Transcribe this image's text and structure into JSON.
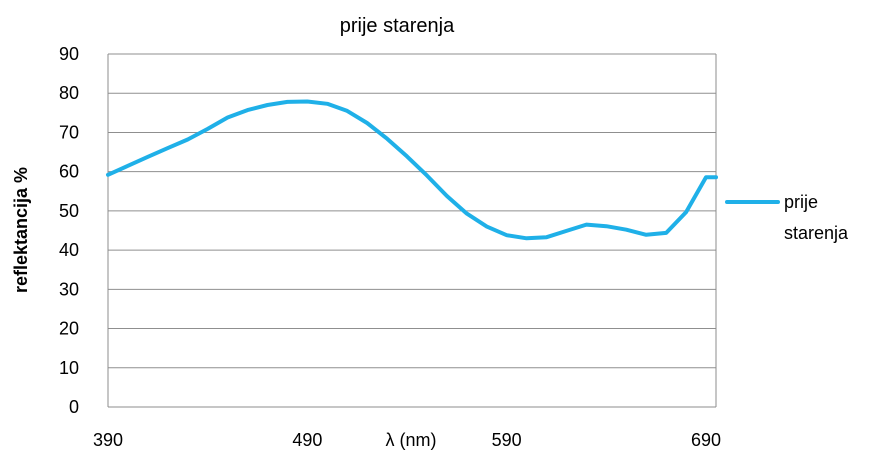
{
  "chart_data": {
    "type": "line",
    "title": "prije starenja",
    "xlabel": "λ (nm)",
    "ylabel": "reflektancija %",
    "xlim": [
      390,
      695
    ],
    "ylim": [
      0,
      90
    ],
    "x_ticks": [
      "390",
      "490",
      "590",
      "690"
    ],
    "y_ticks": [
      "0",
      "10",
      "20",
      "30",
      "40",
      "50",
      "60",
      "70",
      "80",
      "90"
    ],
    "grid": true,
    "legend_position": "right",
    "legend_lines": [
      "prije",
      "starenja"
    ],
    "series": [
      {
        "name": "prije starenja",
        "color": "#1fb0e8",
        "x": [
          390,
          400,
          410,
          420,
          430,
          440,
          450,
          460,
          470,
          480,
          490,
          500,
          510,
          520,
          530,
          540,
          550,
          560,
          570,
          580,
          590,
          600,
          610,
          620,
          630,
          640,
          650,
          660,
          670,
          680,
          690,
          695
        ],
        "y": [
          59.2,
          61.5,
          63.8,
          66.0,
          68.2,
          70.9,
          73.8,
          75.7,
          77.0,
          77.8,
          77.9,
          77.3,
          75.5,
          72.4,
          68.4,
          63.9,
          59.0,
          53.8,
          49.3,
          46.0,
          43.8,
          43.0,
          43.3,
          44.9,
          46.5,
          46.1,
          45.2,
          43.9,
          44.4,
          49.7,
          58.6,
          58.6
        ]
      }
    ]
  }
}
